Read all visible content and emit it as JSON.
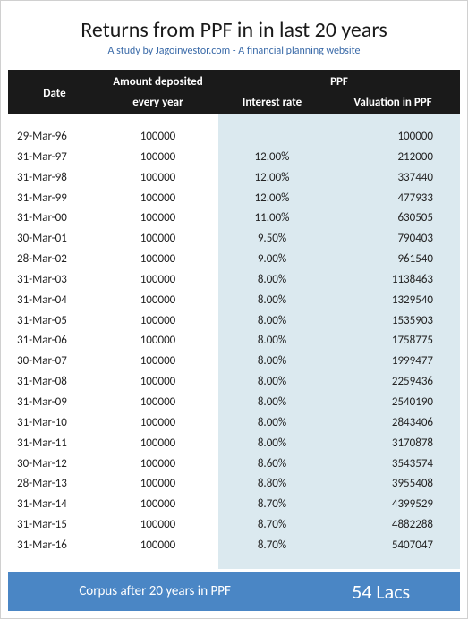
{
  "title": "Returns from PPF in in last 20 years",
  "subtitle": "A study by Jagoinvestor.com - A financial planning website",
  "columns": {
    "date": "Date",
    "amount_l1": "Amount deposited",
    "amount_l2": "every year",
    "ppf_group": "PPF",
    "rate": "Interest rate",
    "valuation": "Valuation in PPF"
  },
  "rows": [
    {
      "date": "29-Mar-96",
      "amount": "100000",
      "rate": "",
      "valuation": "100000"
    },
    {
      "date": "31-Mar-97",
      "amount": "100000",
      "rate": "12.00%",
      "valuation": "212000"
    },
    {
      "date": "31-Mar-98",
      "amount": "100000",
      "rate": "12.00%",
      "valuation": "337440"
    },
    {
      "date": "31-Mar-99",
      "amount": "100000",
      "rate": "12.00%",
      "valuation": "477933"
    },
    {
      "date": "31-Mar-00",
      "amount": "100000",
      "rate": "11.00%",
      "valuation": "630505"
    },
    {
      "date": "30-Mar-01",
      "amount": "100000",
      "rate": "9.50%",
      "valuation": "790403"
    },
    {
      "date": "28-Mar-02",
      "amount": "100000",
      "rate": "9.00%",
      "valuation": "961540"
    },
    {
      "date": "31-Mar-03",
      "amount": "100000",
      "rate": "8.00%",
      "valuation": "1138463"
    },
    {
      "date": "31-Mar-04",
      "amount": "100000",
      "rate": "8.00%",
      "valuation": "1329540"
    },
    {
      "date": "31-Mar-05",
      "amount": "100000",
      "rate": "8.00%",
      "valuation": "1535903"
    },
    {
      "date": "31-Mar-06",
      "amount": "100000",
      "rate": "8.00%",
      "valuation": "1758775"
    },
    {
      "date": "30-Mar-07",
      "amount": "100000",
      "rate": "8.00%",
      "valuation": "1999477"
    },
    {
      "date": "31-Mar-08",
      "amount": "100000",
      "rate": "8.00%",
      "valuation": "2259436"
    },
    {
      "date": "31-Mar-09",
      "amount": "100000",
      "rate": "8.00%",
      "valuation": "2540190"
    },
    {
      "date": "31-Mar-10",
      "amount": "100000",
      "rate": "8.00%",
      "valuation": "2843406"
    },
    {
      "date": "31-Mar-11",
      "amount": "100000",
      "rate": "8.00%",
      "valuation": "3170878"
    },
    {
      "date": "30-Mar-12",
      "amount": "100000",
      "rate": "8.60%",
      "valuation": "3543574"
    },
    {
      "date": "28-Mar-13",
      "amount": "100000",
      "rate": "8.80%",
      "valuation": "3955408"
    },
    {
      "date": "31-Mar-14",
      "amount": "100000",
      "rate": "8.70%",
      "valuation": "4399529"
    },
    {
      "date": "31-Mar-15",
      "amount": "100000",
      "rate": "8.70%",
      "valuation": "4882288"
    },
    {
      "date": "31-Mar-16",
      "amount": "100000",
      "rate": "8.70%",
      "valuation": "5407047"
    }
  ],
  "corpus": {
    "label": "Corpus after 20 years in PPF",
    "value": "54 Lacs"
  },
  "style": {
    "title_fontsize": 24,
    "subtitle_fontsize": 12,
    "body_fontsize": 13,
    "corpus_value_fontsize": 22,
    "header_bg": "#1a1a1a",
    "header_fg": "#ffffff",
    "ppf_col_bg": "#dbe9ef",
    "corpus_bg": "#4a86c5",
    "corpus_fg": "#ffffff",
    "subtitle_color": "#3a6aa8",
    "text_color": "#222222",
    "page_bg": "#ffffff",
    "border_color": "#d0d0d0",
    "font_family": "Calibri"
  }
}
